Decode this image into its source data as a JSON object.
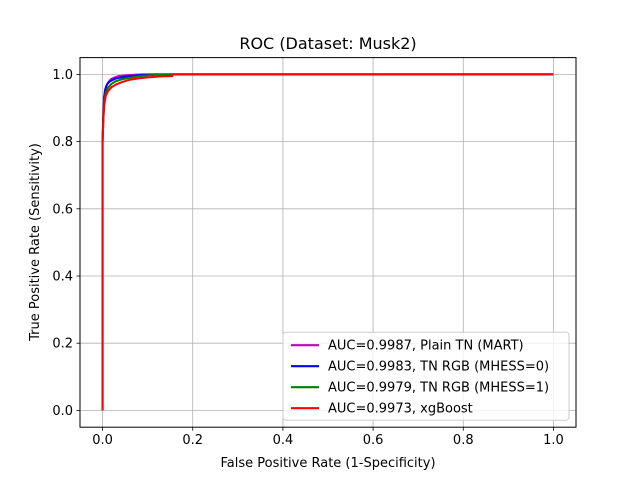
{
  "chart_data": {
    "type": "line",
    "title": "ROC (Dataset: Musk2)",
    "xlabel": "False Positive Rate (1-Specificity)",
    "ylabel": "True Positive Rate (Sensitivity)",
    "xlim": [
      -0.05,
      1.05
    ],
    "ylim": [
      -0.05,
      1.05
    ],
    "xticks": [
      0.0,
      0.2,
      0.4,
      0.6,
      0.8,
      1.0
    ],
    "yticks": [
      0.0,
      0.2,
      0.4,
      0.6,
      0.8,
      1.0
    ],
    "xtick_labels": [
      "0.0",
      "0.2",
      "0.4",
      "0.6",
      "0.8",
      "1.0"
    ],
    "ytick_labels": [
      "0.0",
      "0.2",
      "0.4",
      "0.6",
      "0.8",
      "1.0"
    ],
    "grid": true,
    "legend_position": "lower-right",
    "series": [
      {
        "name": "AUC=0.9987, Plain TN (MART)",
        "color": "#bf00bf",
        "x": [
          0,
          0.0,
          0.002,
          0.003,
          0.005,
          0.008,
          0.012,
          0.018,
          0.025,
          0.035,
          0.05,
          0.07,
          0.09,
          0.11,
          1.0
        ],
        "y": [
          0,
          0.8,
          0.9,
          0.93,
          0.95,
          0.965,
          0.975,
          0.985,
          0.99,
          0.995,
          0.997,
          0.999,
          1.0,
          1.0,
          1.0
        ]
      },
      {
        "name": "AUC=0.9983, TN RGB (MHESS=0)",
        "color": "#0000ff",
        "x": [
          0,
          0.0,
          0.002,
          0.004,
          0.006,
          0.01,
          0.015,
          0.022,
          0.03,
          0.045,
          0.06,
          0.08,
          0.1,
          0.12,
          1.0
        ],
        "y": [
          0,
          0.8,
          0.89,
          0.93,
          0.955,
          0.97,
          0.978,
          0.983,
          0.988,
          0.992,
          0.995,
          0.998,
          0.999,
          1.0,
          1.0
        ]
      },
      {
        "name": "AUC=0.9979, TN RGB (MHESS=1)",
        "color": "#008000",
        "x": [
          0,
          0.0,
          0.002,
          0.004,
          0.007,
          0.012,
          0.02,
          0.03,
          0.045,
          0.06,
          0.08,
          0.1,
          0.12,
          0.14,
          1.0
        ],
        "y": [
          0,
          0.8,
          0.88,
          0.92,
          0.945,
          0.96,
          0.972,
          0.98,
          0.986,
          0.99,
          0.994,
          0.997,
          0.999,
          1.0,
          1.0
        ]
      },
      {
        "name": "AUC=0.9973, xgBoost",
        "color": "#ff0000",
        "x": [
          0,
          0.0,
          0.002,
          0.004,
          0.007,
          0.012,
          0.02,
          0.03,
          0.045,
          0.06,
          0.08,
          0.1,
          0.13,
          0.155,
          0.155,
          1.0
        ],
        "y": [
          0,
          0.8,
          0.87,
          0.91,
          0.935,
          0.95,
          0.962,
          0.97,
          0.978,
          0.984,
          0.988,
          0.991,
          0.994,
          0.995,
          1.0,
          1.0
        ]
      }
    ]
  }
}
